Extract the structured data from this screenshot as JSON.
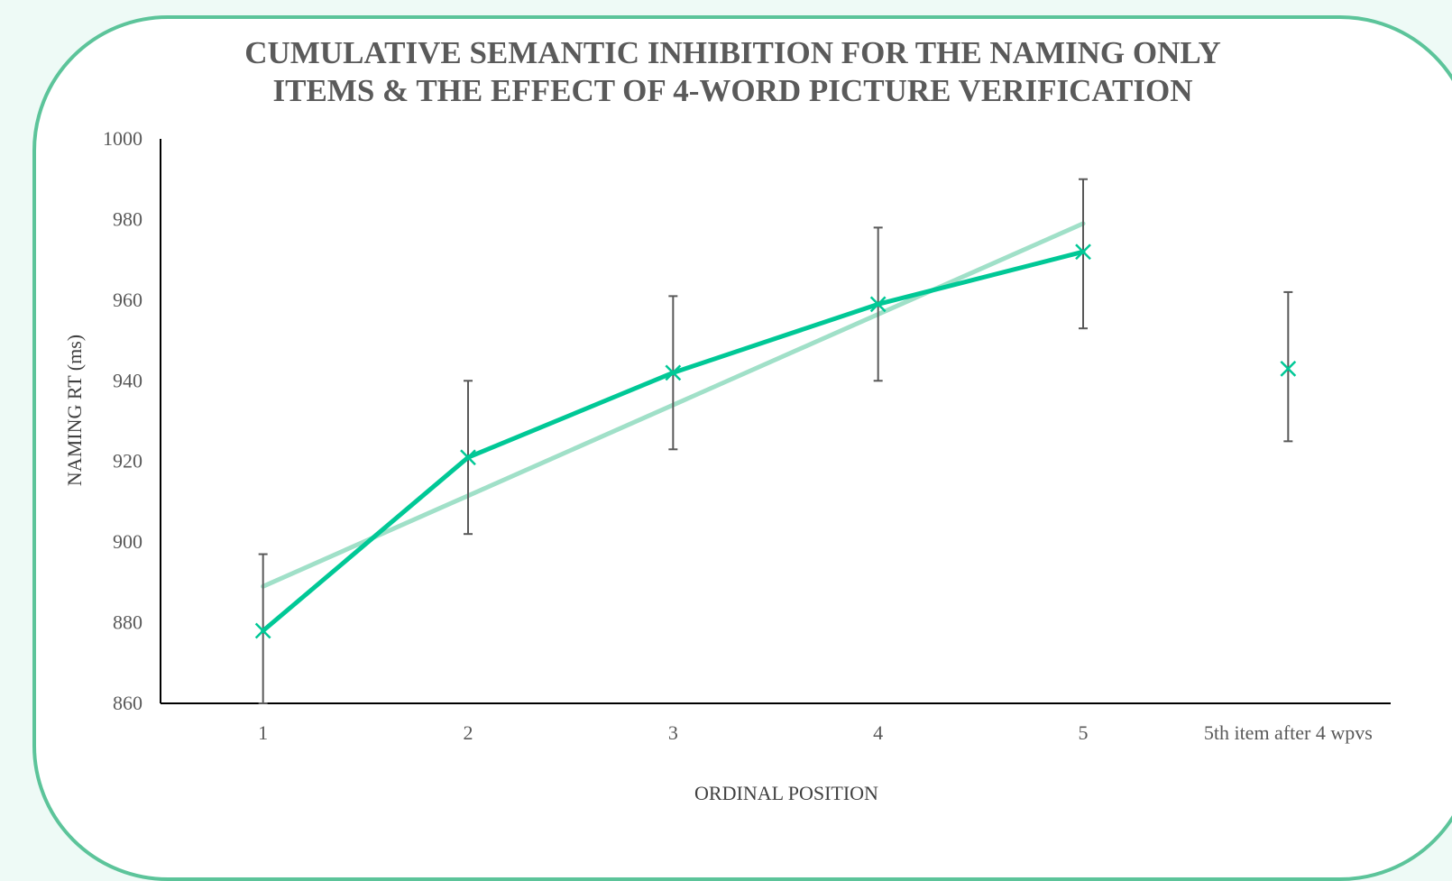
{
  "chart_data": {
    "type": "line",
    "title_line1": "CUMULATIVE SEMANTIC INHIBITION FOR THE NAMING ONLY",
    "title_line2": "ITEMS & THE EFFECT OF 4-WORD PICTURE VERIFICATION",
    "xlabel": "ORDINAL POSITION",
    "ylabel": "NAMING RT (ms)",
    "categories": [
      "1",
      "2",
      "3",
      "4",
      "5",
      "5th item after 4 wpvs"
    ],
    "ylim": [
      860,
      1000
    ],
    "yticks": [
      860,
      880,
      900,
      920,
      940,
      960,
      980,
      1000
    ],
    "grid": false,
    "legend": "none",
    "series": [
      {
        "values": [
          878,
          921,
          942,
          959,
          972,
          943
        ],
        "error_low": [
          860,
          902,
          923,
          940,
          953,
          925
        ],
        "error_high": [
          897,
          940,
          961,
          978,
          990,
          962
        ],
        "line_through": [
          0,
          1,
          2,
          3,
          4
        ],
        "marker": "x",
        "color": "#00c896"
      }
    ],
    "trendline": {
      "type": "linear",
      "x_from": "1",
      "x_to": "5",
      "values": [
        889,
        979
      ],
      "color": "#a0e0c8"
    },
    "error_bar_color": "#595959",
    "axis_color": "#000000"
  }
}
